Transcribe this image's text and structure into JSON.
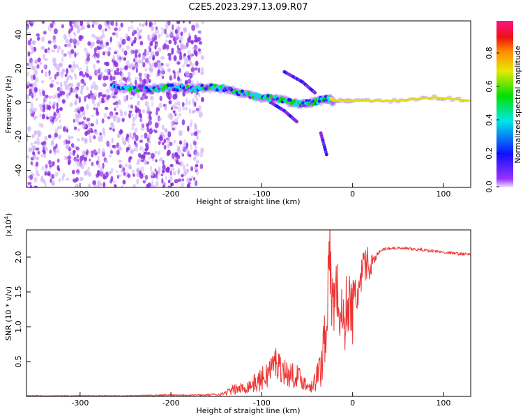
{
  "chart_data": [
    {
      "type": "heatmap",
      "title": "C2E5.2023.297.13.09.R07",
      "xlabel": "Height of straight line (km)",
      "ylabel": "Frequency (Hz)",
      "xlim": [
        -359,
        130
      ],
      "ylim": [
        -50,
        48
      ],
      "xticks": [
        -300,
        -200,
        -100,
        0,
        100
      ],
      "xtick_labels": [
        "-300",
        "-200",
        "-100",
        "0",
        "100"
      ],
      "yticks": [
        40,
        20,
        0,
        -20,
        -40
      ],
      "ytick_labels": [
        "40",
        "20",
        "0",
        "-20",
        "-40"
      ],
      "noise_region_x": [
        -359,
        -165
      ],
      "ridge": [
        [
          -265,
          9
        ],
        [
          -240,
          8
        ],
        [
          -220,
          8
        ],
        [
          -200,
          9
        ],
        [
          -180,
          8
        ],
        [
          -160,
          9
        ],
        [
          -140,
          8
        ],
        [
          -120,
          5
        ],
        [
          -100,
          3
        ],
        [
          -80,
          2
        ],
        [
          -60,
          -1
        ],
        [
          -45,
          0
        ],
        [
          -30,
          2
        ],
        [
          -20,
          1
        ],
        [
          0,
          1
        ],
        [
          50,
          1
        ],
        [
          90,
          3
        ],
        [
          130,
          1
        ]
      ],
      "branches": [
        [
          [
            -90,
            0
          ],
          [
            -75,
            -5
          ],
          [
            -60,
            -12
          ]
        ],
        [
          [
            -75,
            18
          ],
          [
            -55,
            12
          ],
          [
            -40,
            5
          ]
        ],
        [
          [
            -35,
            -18
          ],
          [
            -28,
            -32
          ]
        ]
      ],
      "colorbar": {
        "label": "Normalized spectral amplitude",
        "range": [
          0,
          1
        ],
        "ticks": [
          "0.0",
          "0.2",
          "0.4",
          "0.6",
          "0.8"
        ]
      }
    },
    {
      "type": "line",
      "xlabel": "Height of straight line (km)",
      "ylabel": "SNR (10 * v/v)",
      "scale_label": "(x10^4)",
      "scale_base": "(x10",
      "scale_exp": "4",
      "xlim": [
        -359,
        130
      ],
      "ylim": [
        0,
        2.39
      ],
      "xticks": [
        -300,
        -200,
        -100,
        0,
        100
      ],
      "xtick_labels": [
        "-300",
        "-200",
        "-100",
        "0",
        "100"
      ],
      "yticks": [
        0.5,
        1.0,
        1.5,
        2.0
      ],
      "ytick_labels": [
        "0.5",
        "1.0",
        "1.5",
        "2.0"
      ],
      "color": "#ee3333",
      "x": [
        -359,
        -250,
        -200,
        -165,
        -145,
        -130,
        -120,
        -105,
        -95,
        -85,
        -78,
        -70,
        -60,
        -50,
        -42,
        -35,
        -30,
        -25,
        -22,
        -18,
        -14,
        -10,
        -5,
        0,
        5,
        10,
        15,
        18,
        22,
        28,
        35,
        45,
        60,
        80,
        100,
        115,
        130
      ],
      "y": [
        0.01,
        0.01,
        0.02,
        0.02,
        0.03,
        0.1,
        0.12,
        0.2,
        0.3,
        0.5,
        0.4,
        0.3,
        0.3,
        0.15,
        0.2,
        0.4,
        1.0,
        1.9,
        1.3,
        1.6,
        1.2,
        1.0,
        1.4,
        1.2,
        1.5,
        1.6,
        2.0,
        1.8,
        1.95,
        2.05,
        2.12,
        2.13,
        2.12,
        2.1,
        2.07,
        2.05,
        2.04
      ],
      "noise_amp": [
        0.005,
        0.005,
        0.01,
        0.01,
        0.02,
        0.08,
        0.08,
        0.15,
        0.2,
        0.25,
        0.2,
        0.2,
        0.15,
        0.1,
        0.15,
        0.3,
        0.6,
        0.6,
        0.6,
        0.5,
        0.5,
        0.5,
        0.5,
        0.5,
        0.4,
        0.4,
        0.3,
        0.2,
        0.1,
        0.03,
        0.02,
        0.02,
        0.02,
        0.02,
        0.02,
        0.02,
        0.02
      ]
    }
  ]
}
